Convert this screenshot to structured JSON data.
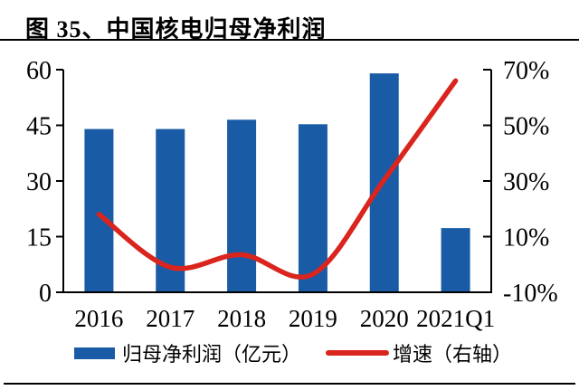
{
  "figure": {
    "title": "图 35、中国核电归母净利润"
  },
  "chart_data": {
    "type": "combo",
    "title": "中国核电归母净利润",
    "categories": [
      "2016",
      "2017",
      "2018",
      "2019",
      "2020",
      "2021Q1"
    ],
    "series": [
      {
        "name": "归母净利润（亿元）",
        "type": "bar",
        "axis": "left",
        "color": "#1A5BA6",
        "values": [
          44,
          44,
          46.5,
          45.3,
          59,
          17.3
        ]
      },
      {
        "name": "增速（右轴）",
        "type": "line",
        "axis": "right",
        "color": "#D9251D",
        "values": [
          18,
          -1,
          3.5,
          -3.5,
          30.5,
          66
        ]
      }
    ],
    "left_axis": {
      "min": 0,
      "max": 60,
      "tick_values": [
        0,
        15,
        30,
        45,
        60
      ],
      "tick_labels": [
        "0",
        "15",
        "30",
        "45",
        "60"
      ]
    },
    "right_axis": {
      "min": -10,
      "max": 70,
      "tick_values": [
        -10,
        10,
        30,
        50,
        70
      ],
      "tick_labels": [
        "-10%",
        "10%",
        "30%",
        "50%",
        "70%"
      ]
    },
    "grid": false,
    "legend_position": "bottom"
  },
  "legend": {
    "items": [
      {
        "label": "归母净利润（亿元）",
        "marker": "bar-swatch",
        "color": "#1A5BA6"
      },
      {
        "label": "增速（右轴）",
        "marker": "line-swatch",
        "color": "#D9251D"
      }
    ]
  }
}
